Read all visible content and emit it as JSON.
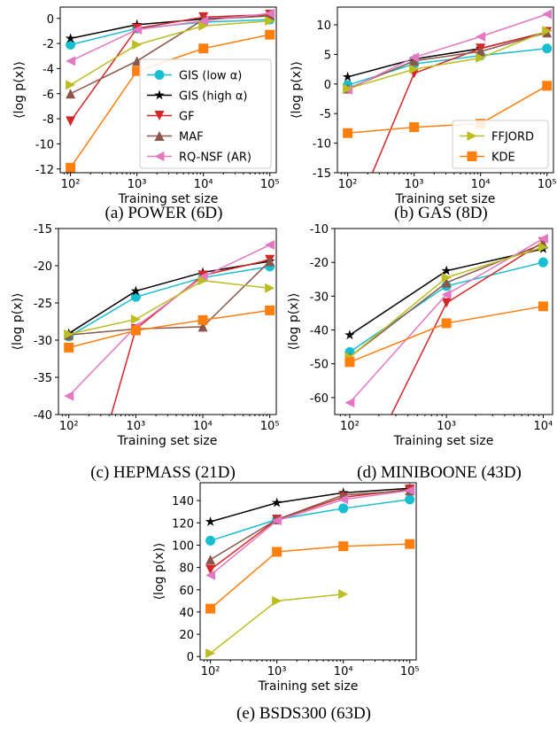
{
  "chart_data": [
    {
      "type": "line",
      "caption": "(a) POWER (6D)",
      "xlabel": "Training set size",
      "ylabel": "⟨log p(x)⟩",
      "xscale": "log",
      "xlim": [
        70,
        125000
      ],
      "ylim": [
        -12.3,
        0.9
      ],
      "xticks": [
        {
          "value": 100,
          "label": "10²"
        },
        {
          "value": 1000,
          "label": "10³"
        },
        {
          "value": 10000,
          "label": "10⁴"
        },
        {
          "value": 100000,
          "label": "10⁵"
        }
      ],
      "yticks": [
        -12,
        -10,
        -8,
        -6,
        -4,
        -2,
        0
      ],
      "legend": "lower right",
      "x": [
        100,
        1000,
        10000,
        100000
      ],
      "series": [
        {
          "name": "GIS (low α)",
          "color": "#17becf",
          "marker": "circle",
          "values": [
            -2.1,
            -0.8,
            -0.3,
            -0.1
          ]
        },
        {
          "name": "GIS (high α)",
          "color": "#000000",
          "marker": "star",
          "values": [
            -1.6,
            -0.5,
            -0.05,
            0.2
          ]
        },
        {
          "name": "GF",
          "color": "#d62728",
          "marker": "triangle-down",
          "values": [
            -8.2,
            -0.8,
            0.1,
            0.3
          ]
        },
        {
          "name": "MAF",
          "color": "#8c564b",
          "marker": "triangle-up",
          "values": [
            -6.0,
            -3.4,
            -0.1,
            0.2
          ]
        },
        {
          "name": "RQ-NSF (AR)",
          "color": "#e377c2",
          "marker": "triangle-left",
          "values": [
            -3.4,
            -0.9,
            -0.2,
            0.4
          ]
        },
        {
          "color": "#bcbd22",
          "marker": "triangle-right",
          "values": [
            -5.3,
            -2.1,
            -0.6,
            -0.2
          ]
        },
        {
          "color": "#ff7f0e",
          "marker": "square",
          "values": [
            -11.9,
            -4.2,
            -2.4,
            -1.3
          ]
        }
      ]
    },
    {
      "type": "line",
      "caption": "(b) GAS (8D)",
      "xlabel": "Training set size",
      "ylabel": "⟨log p(x)⟩",
      "xscale": "log",
      "xlim": [
        70,
        125000
      ],
      "ylim": [
        -15,
        13
      ],
      "xticks": [
        {
          "value": 100,
          "label": "10²"
        },
        {
          "value": 1000,
          "label": "10³"
        },
        {
          "value": 10000,
          "label": "10⁴"
        },
        {
          "value": 100000,
          "label": "10⁵"
        }
      ],
      "yticks": [
        -15,
        -10,
        -5,
        0,
        5,
        10
      ],
      "legend": "lower right",
      "x": [
        100,
        1000,
        10000,
        100000
      ],
      "series": [
        {
          "color": "#17becf",
          "marker": "circle",
          "values": [
            -0.2,
            3.4,
            4.8,
            6.0
          ]
        },
        {
          "color": "#000000",
          "marker": "star",
          "values": [
            1.2,
            4.2,
            6.0,
            8.8
          ]
        },
        {
          "color": "#d62728",
          "marker": "triangle-down",
          "values": [
            -25,
            1.8,
            6.0,
            8.8
          ]
        },
        {
          "color": "#8c564b",
          "marker": "triangle-up",
          "values": [
            -0.8,
            3.9,
            5.5,
            8.7
          ]
        },
        {
          "color": "#e377c2",
          "marker": "triangle-left",
          "values": [
            -1.0,
            4.5,
            8.0,
            11.8
          ]
        },
        {
          "name": "FFJORD",
          "color": "#bcbd22",
          "marker": "triangle-right",
          "values": [
            -0.8,
            2.5,
            4.4,
            9.0
          ]
        },
        {
          "name": "KDE",
          "color": "#ff7f0e",
          "marker": "square",
          "values": [
            -8.3,
            -7.3,
            -6.7,
            -0.3
          ]
        }
      ]
    },
    {
      "type": "line",
      "caption": "(c) HEPMASS (21D)",
      "xlabel": "Training set size",
      "ylabel": "⟨log p(x)⟩",
      "xscale": "log",
      "xlim": [
        70,
        125000
      ],
      "ylim": [
        -40,
        -15
      ],
      "xticks": [
        {
          "value": 100,
          "label": "10²"
        },
        {
          "value": 1000,
          "label": "10³"
        },
        {
          "value": 10000,
          "label": "10⁴"
        },
        {
          "value": 100000,
          "label": "10⁵"
        }
      ],
      "yticks": [
        -40,
        -35,
        -30,
        -25,
        -20,
        -15
      ],
      "x": [
        100,
        1000,
        10000,
        100000
      ],
      "series": [
        {
          "color": "#17becf",
          "marker": "circle",
          "values": [
            -29.5,
            -24.2,
            -21.6,
            -20.1
          ]
        },
        {
          "color": "#000000",
          "marker": "star",
          "values": [
            -29.1,
            -23.4,
            -20.9,
            -19.4
          ]
        },
        {
          "color": "#d62728",
          "marker": "triangle-down",
          "values": [
            -60,
            -28.5,
            -21.3,
            -19.2
          ]
        },
        {
          "color": "#8c564b",
          "marker": "triangle-up",
          "values": [
            -29.3,
            -28.5,
            -28.2,
            -19.4
          ]
        },
        {
          "color": "#e377c2",
          "marker": "triangle-left",
          "values": [
            -37.5,
            -28.2,
            -21.5,
            -17.2
          ]
        },
        {
          "color": "#bcbd22",
          "marker": "triangle-right",
          "values": [
            -29.2,
            -27.2,
            -22.0,
            -23.0
          ]
        },
        {
          "color": "#ff7f0e",
          "marker": "square",
          "values": [
            -31.0,
            -28.7,
            -27.3,
            -26.0
          ]
        }
      ]
    },
    {
      "type": "line",
      "caption": "(d) MINIBOONE (43D)",
      "xlabel": "Training set size",
      "ylabel": "⟨log p(x)⟩",
      "xscale": "log",
      "xlim": [
        70,
        12500
      ],
      "ylim": [
        -65,
        -10
      ],
      "xticks": [
        {
          "value": 100,
          "label": "10²"
        },
        {
          "value": 1000,
          "label": "10³"
        },
        {
          "value": 10000,
          "label": "10⁴"
        }
      ],
      "yticks": [
        -60,
        -50,
        -40,
        -30,
        -20,
        -10
      ],
      "x": [
        100,
        1000,
        10000
      ],
      "series": [
        {
          "color": "#17becf",
          "marker": "circle",
          "values": [
            -46.5,
            -27.0,
            -20.0
          ]
        },
        {
          "color": "#000000",
          "marker": "star",
          "values": [
            -41.5,
            -22.5,
            -16.0
          ]
        },
        {
          "color": "#d62728",
          "marker": "triangle-down",
          "values": [
            -90,
            -32,
            -14
          ]
        },
        {
          "color": "#8c564b",
          "marker": "triangle-up",
          "values": [
            -48,
            -26,
            -14.5
          ]
        },
        {
          "color": "#e377c2",
          "marker": "triangle-left",
          "values": [
            -61.5,
            -29.5,
            -13.0
          ]
        },
        {
          "color": "#bcbd22",
          "marker": "triangle-right",
          "values": [
            -48,
            -24.5,
            -15.5
          ]
        },
        {
          "color": "#ff7f0e",
          "marker": "square",
          "values": [
            -49.5,
            -38,
            -33
          ]
        }
      ]
    },
    {
      "type": "line",
      "caption": "(e) BSDS300 (63D)",
      "xlabel": "Training set size",
      "ylabel": "⟨log p(x)⟩",
      "xscale": "log",
      "xlim": [
        70,
        125000
      ],
      "ylim": [
        -3,
        156
      ],
      "xticks": [
        {
          "value": 100,
          "label": "10²"
        },
        {
          "value": 1000,
          "label": "10³"
        },
        {
          "value": 10000,
          "label": "10⁴"
        },
        {
          "value": 100000,
          "label": "10⁵"
        }
      ],
      "yticks": [
        0,
        20,
        40,
        60,
        80,
        100,
        120,
        140
      ],
      "x": [
        100,
        1000,
        10000,
        100000
      ],
      "series": [
        {
          "color": "#17becf",
          "marker": "circle",
          "values": [
            104,
            123,
            133,
            141
          ]
        },
        {
          "color": "#000000",
          "marker": "star",
          "values": [
            121,
            138,
            147,
            151
          ]
        },
        {
          "color": "#d62728",
          "marker": "triangle-down",
          "values": [
            78,
            123,
            143,
            150
          ]
        },
        {
          "color": "#8c564b",
          "marker": "triangle-up",
          "values": [
            87,
            123,
            145,
            149
          ]
        },
        {
          "color": "#e377c2",
          "marker": "triangle-left",
          "values": [
            73,
            122,
            141,
            149
          ]
        },
        {
          "color": "#bcbd22",
          "marker": "triangle-right",
          "values": [
            3,
            50,
            56,
            null
          ]
        },
        {
          "color": "#ff7f0e",
          "marker": "square",
          "values": [
            43,
            94,
            99,
            101
          ]
        }
      ]
    }
  ]
}
